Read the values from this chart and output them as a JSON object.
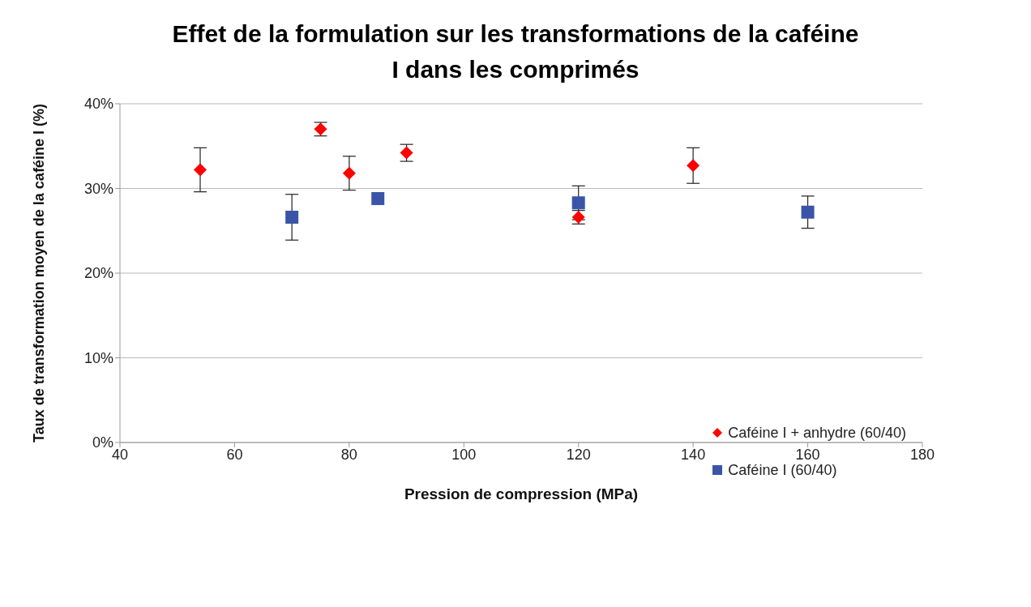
{
  "chart_data": {
    "type": "scatter",
    "title": "Effet de la formulation sur les transformations de la caféine I dans les comprimés",
    "xlabel": "Pression de compression (MPa)",
    "ylabel": "Taux de transformation moyen de la caféine I (%)",
    "series": [
      {
        "name": "Caféine I + anhydre  (60/40)",
        "color": "#ff0000",
        "marker": "diamond",
        "x": [
          54,
          75,
          80,
          90,
          120,
          140
        ],
        "values": [
          32.2,
          37.0,
          31.8,
          34.2,
          26.6,
          32.7
        ],
        "errors": [
          2.6,
          0.8,
          2.0,
          1.0,
          0.8,
          2.1
        ]
      },
      {
        "name": "Caféine I (60/40)",
        "color": "#3a55a8",
        "marker": "square",
        "x": [
          70,
          85,
          120,
          160
        ],
        "values": [
          26.6,
          28.8,
          28.3,
          27.2
        ],
        "errors": [
          2.7,
          null,
          2.0,
          1.9
        ]
      }
    ],
    "xlim": [
      40,
      180
    ],
    "xticks": [
      40,
      60,
      80,
      100,
      120,
      140,
      160,
      180
    ],
    "ylim": [
      0,
      40
    ],
    "yticks": [
      {
        "value": 0,
        "label": "0%"
      },
      {
        "value": 10,
        "label": "10%"
      },
      {
        "value": 20,
        "label": "20%"
      },
      {
        "value": 30,
        "label": "30%"
      },
      {
        "value": 40,
        "label": "40%"
      }
    ],
    "grid": "y",
    "legend": "bottom right"
  }
}
